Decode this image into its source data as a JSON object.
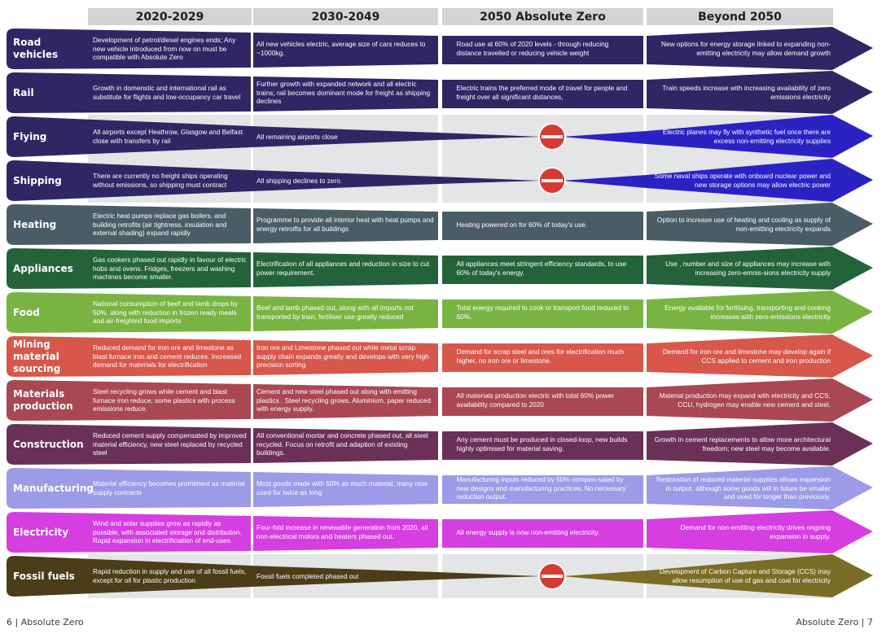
{
  "headers": [
    "2020-2029",
    "2030-2049",
    "2050 Absolute Zero",
    "Beyond 2050"
  ],
  "colors": {
    "header_bg": "#d4d4d6",
    "blocked_bg": "#e4e5e7",
    "no_entry_red": "#d63b32"
  },
  "rows": [
    {
      "label": "Road vehicles",
      "color": "#2e2764",
      "blocked": false,
      "c2020": "Development of petrol/diesel engines ends; Any new vehicle introduced from now on must be compatible with Absolute Zero",
      "c2030": "All new vehicles electric, average size of cars reduces to ~1000kg.",
      "c2050": "Road use at 60% of 2020 levels - through reducing distance travelled or reducing vehicle weight",
      "beyond": "New options for energy storage linked to expanding non-emitting electricity may allow demand growth"
    },
    {
      "label": "Rail",
      "color": "#2e2764",
      "blocked": false,
      "c2020": "Growth in domenstic and international rail as substitute for flights and low-occupancy car travel",
      "c2030": "Further growth with expanded network and all electric trains; rail becomes dominant mode for freight as shipping declines",
      "c2050": "Electric trains the preferred mode of travel for people and freight over all significant distances,",
      "beyond": "Train speeds increase with increasing availability of zero emissions electricity"
    },
    {
      "label": "Flying",
      "color": "#2e2764",
      "beyond_color": "#2b22c4",
      "blocked": true,
      "c2020": "All airports except Heathrow, Glasgow and Belfast close with transfers by rail",
      "c2030": "All remaining airports close",
      "c2050": "",
      "beyond": "Electric planes may fly with synthetic fuel once  there are excess non-emitting electricity supplies"
    },
    {
      "label": "Shipping",
      "color": "#2e2764",
      "beyond_color": "#2b22c4",
      "blocked": true,
      "c2020": "There are currently no freight ships operating without emissions, so shipping must contract",
      "c2030": "All shipping declines to zero.",
      "c2050": "",
      "beyond": "Some naval ships operate with onboard nuclear power and new storage options may allow electric power"
    },
    {
      "label": "Heating",
      "color": "#4a5d66",
      "blocked": false,
      "c2020": "Electric heat pumps replace gas boilers. and building retrofits (air tightness, insulation and external shading) expand rapidly",
      "c2030": "Programme to provide all interior heat with heat pumps and energy retroifts for all buildings",
      "c2050": "Heating powered on for 60% of today's use.",
      "beyond": "Option to increase use of heating and cooling as supply of non-emitting electricity expands"
    },
    {
      "label": "Appliances",
      "color": "#24633a",
      "blocked": false,
      "c2020": "Gas cookers phased out rapidly in favour of electric hobs and ovens. Fridges, freezers and washing machines become smaller.",
      "c2030": "Electrification of all appliances and reduction in size to cut power requirement.",
      "c2050": "All appliances meet stringent efficiency standards, to use 60% of today's energy.",
      "beyond": "Use , number and size of appliances  may increase with increasing zero-emnis-sions electricity supply"
    },
    {
      "label": "Food",
      "color": "#79b443",
      "blocked": false,
      "c2020": "National consumption of beef and lamb drops by 50%, along with reduction in frozen ready meals and air-freighted food imports",
      "c2030": "Beef and lamb phased out, along with all imports not transported by train; fertiliser use greatly reduced",
      "c2050": "Total energy required to cook or transport food reduced to 60%.",
      "beyond": "Energy available for fertilising, transporting and cooking increases with zero-emissions electricity"
    },
    {
      "label": "Mining  material sourcing",
      "color": "#d7574b",
      "blocked": false,
      "c2020": "Reduced demand for iron ore and limestone as blast furnace iron and cement reduces. Increased demand for materials for electrification",
      "c2030": "Iron ore and Limestone phased out while metal scrap supply chain expands greatly and develops with very high precision sorting",
      "c2050": "Demand for scrap steel and ores for electrification much higher, no iron ore or limestone.",
      "beyond": "Demand for iron ore and limestone may develop again if CCS applied to cement and iron production"
    },
    {
      "label": "Materials production",
      "color": "#a94753",
      "blocked": false,
      "c2020": "Steel recycling grows while cement and blast furnace iron reduce; some plastics with process emissions reduce.",
      "c2030": "Cement and new steel phased out along with emitting plastics . Steel recycling grows. Aluminium, paper reduced with energy supply.",
      "c2050": "All materials production electric with total 60% power availability compared to 2020",
      "beyond": "Material production may expand with electricity and CCS, CCU, hydrogen may enable new cement and steel."
    },
    {
      "label": "Construction",
      "color": "#6b3058",
      "blocked": false,
      "c2020": "Reduced cement supply compensated by improved material efficiency, new steel replaced by recycled steel",
      "c2030": "All conventional mortar and concrete phased out, all steel recycled. Focus on retrofit and adaption of existing buildings.",
      "c2050": "Any cement must be produced in closed-loop, new builds highly optimised for material saving.",
      "beyond": "Growth in cement replacements to allow more architectural freedom; new steel may become available."
    },
    {
      "label": "Manufacturing",
      "color": "#9b9be8",
      "blocked": false,
      "c2020": "Material efficiency becomes promiment as material supply contracts",
      "c2030": "Most goods made with 50% as much material, many now used for twice as long",
      "c2050": "Manufacturing inputs reduced by 50% compen-sated by new designs and manufacturing practices. No necessary reduction output.",
      "beyond": "Restoration of reduced material supplies allows expansion in output, although some goods will in future be smaller and used for longer than previously."
    },
    {
      "label": "Electricity",
      "color": "#d53ee0",
      "blocked": false,
      "c2020": "Wind and solar supplies grow as rapidly as possible, with associated storage and distribution. Rapid expansion in electrificiation of end-uses.",
      "c2030": "Four-fold increase in renewable generation from 2020, all non-electrical motors and heaters phased out.",
      "c2050": "All energy supply is now non-emitting electricity.",
      "beyond": "Demand for non-emitting electricity drives ongoing expansion in supply."
    },
    {
      "label": "Fossil fuels",
      "color": "#4a3d17",
      "beyond_color": "#7a6d25",
      "blocked": true,
      "c2020": "Rapid reduction in supply and use of all fossil fuels, except for oil for plastic production",
      "c2030": "Fossil fuels completed phased out",
      "c2050": "",
      "beyond": "Development of Carbon Capture and Storage (CCS) may allow resumption of use of gas and coal for electricity"
    }
  ],
  "footer": {
    "left": "6 | Absolute Zero",
    "right": "Absolute Zero | 7"
  }
}
